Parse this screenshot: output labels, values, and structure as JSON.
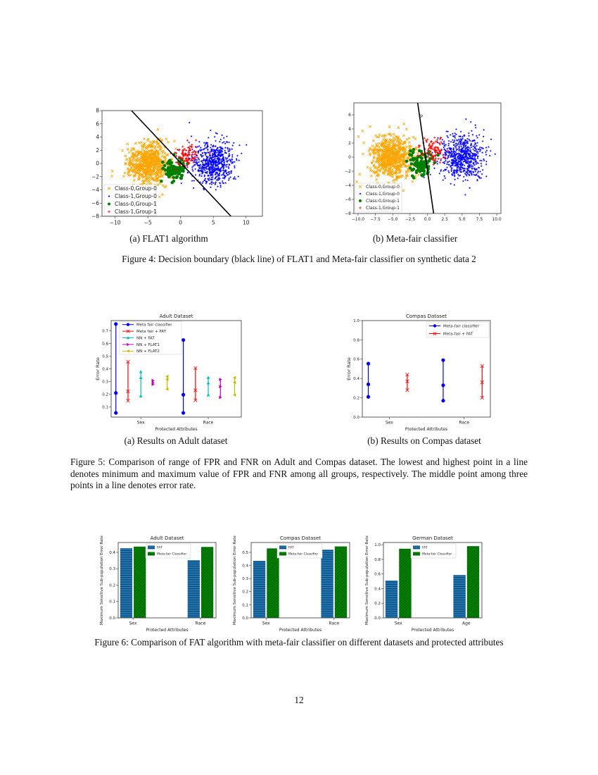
{
  "page_number": "12",
  "figure4": {
    "caption": "Figure 4: Decision boundary (black line) of FLAT1 and Meta-fair classifier on synthetic data 2",
    "subcaptions": [
      "(a) FLAT1 algorithm",
      "(b) Meta-fair classifier"
    ]
  },
  "figure5": {
    "caption": "Figure 5: Comparison of range of FPR and FNR on Adult and Compas dataset. The lowest and highest point in a line denotes minimum and maximum value of FPR and FNR among all groups, respectively. The middle point among three points in a line denotes error rate.",
    "subcaptions": [
      "(a) Results on Adult dataset",
      "(b) Results on Compas dataset"
    ]
  },
  "figure6": {
    "caption": "Figure 6: Comparison of FAT algorithm with meta-fair classifier on different datasets and protected attributes"
  },
  "chart_data": [
    {
      "type": "scatter",
      "title": "",
      "xlabel": "",
      "ylabel": "",
      "xlim": [
        -12,
        12.5
      ],
      "ylim": [
        -8,
        8
      ],
      "x_ticks": [
        -10,
        -5,
        0,
        5,
        10
      ],
      "x_tick_labels": [
        "−10",
        "−5",
        "0",
        "5",
        "10"
      ],
      "y_ticks": [
        -8,
        -6,
        -4,
        -2,
        0,
        2,
        4,
        6,
        8
      ],
      "y_tick_labels": [
        "−8",
        "−6",
        "−4",
        "−2",
        "0",
        "2",
        "4",
        "6",
        "8"
      ],
      "legend_position": "lower-left",
      "decision_boundary": [
        [
          -7.5,
          8
        ],
        [
          7.7,
          -8
        ]
      ],
      "boundary_color": "#000000",
      "series": [
        {
          "name": "Class-0,Group-0",
          "marker": "x",
          "color": "#ffa500",
          "center": [
            -5,
            0
          ],
          "std": 1.6
        },
        {
          "name": "Class-1,Group-0",
          "marker": "*",
          "color": "#0000ff",
          "center": [
            5,
            0
          ],
          "std": 1.6
        },
        {
          "name": "Class-0,Group-1",
          "marker": "o",
          "color": "#008000",
          "center": [
            -1,
            -1
          ],
          "std": 0.9
        },
        {
          "name": "Class-1,Group-1",
          "marker": "+",
          "color": "#ff0000",
          "center": [
            1,
            1
          ],
          "std": 0.9
        }
      ]
    },
    {
      "type": "scatter",
      "title": "",
      "xlabel": "",
      "ylabel": "",
      "xlim": [
        -10.6,
        10.6
      ],
      "ylim": [
        -8,
        7.7
      ],
      "x_ticks": [
        -10,
        -7.5,
        -5,
        -2.5,
        0,
        2.5,
        5,
        7.5,
        10
      ],
      "x_tick_labels": [
        "−10.0",
        "−7.5",
        "−5.0",
        "−2.5",
        "0.0",
        "2.5",
        "5.0",
        "7.5",
        "10.0"
      ],
      "y_ticks": [
        -8,
        -6,
        -4,
        -2,
        0,
        2,
        4,
        6
      ],
      "y_tick_labels": [
        "−8",
        "−6",
        "−4",
        "−2",
        "0",
        "2",
        "4",
        "6"
      ],
      "legend_position": "lower-left",
      "decision_boundary": [
        [
          -1.4,
          7.7
        ],
        [
          0.9,
          -8
        ]
      ],
      "boundary_label": "0",
      "boundary_color": "#000000",
      "series": [
        {
          "name": "Class-0,Group-0",
          "marker": "x",
          "color": "#ffa500",
          "center": [
            -5,
            0
          ],
          "std": 1.6
        },
        {
          "name": "Class-1,Group-0",
          "marker": "*",
          "color": "#0000ff",
          "center": [
            5,
            0
          ],
          "std": 1.6
        },
        {
          "name": "Class-0,Group-1",
          "marker": "o",
          "color": "#008000",
          "center": [
            -1,
            -1
          ],
          "std": 0.9
        },
        {
          "name": "Class-1,Group-1",
          "marker": "+",
          "color": "#ff0000",
          "center": [
            0.8,
            1
          ],
          "std": 0.9
        }
      ]
    },
    {
      "type": "errorbar",
      "title": "Adult Dataset",
      "xlabel": "Protected Attributes",
      "ylabel": "Error Rate",
      "categories": [
        "Sex",
        "Race"
      ],
      "ylim": [
        0.02,
        0.78
      ],
      "y_ticks": [
        0.1,
        0.2,
        0.3,
        0.4,
        0.5,
        0.6,
        0.7
      ],
      "y_tick_labels": [
        "0.1",
        "0.2",
        "0.3",
        "0.4",
        "0.5",
        "0.6",
        "0.7"
      ],
      "legend_position": "upper-left",
      "value_order": [
        "min",
        "error rate",
        "max"
      ],
      "series": [
        {
          "name": "Meta fair classifier",
          "marker": "o",
          "color": "#0000ff",
          "values": [
            [
              0.053,
              0.21,
              0.753
            ],
            [
              0.053,
              0.196,
              0.627
            ]
          ]
        },
        {
          "name": "Meta fair + FAT",
          "marker": "x",
          "color": "#ff0000",
          "values": [
            [
              0.149,
              0.222,
              0.456
            ],
            [
              0.153,
              0.231,
              0.406
            ]
          ]
        },
        {
          "name": "NN + FAT",
          "marker": "^",
          "color": "#00bfbf",
          "values": [
            [
              0.186,
              0.331,
              0.378
            ],
            [
              0.194,
              0.288,
              0.331
            ]
          ]
        },
        {
          "name": "NN + FLAT1",
          "marker": ">",
          "color": "#bf00bf",
          "values": [
            [
              0.278,
              0.29,
              0.308
            ],
            [
              0.175,
              0.26,
              0.316
            ]
          ]
        },
        {
          "name": "NN + FLAT2",
          "marker": "<",
          "color": "#bfbf00",
          "values": [
            [
              0.24,
              0.316,
              0.34
            ],
            [
              0.194,
              0.293,
              0.331
            ]
          ]
        }
      ]
    },
    {
      "type": "errorbar",
      "title": "Compas Dataset",
      "xlabel": "Protected Attributes",
      "ylabel": "Error Rate",
      "categories": [
        "Sex",
        "Race"
      ],
      "ylim": [
        0,
        1
      ],
      "y_ticks": [
        0,
        0.2,
        0.4,
        0.6,
        0.8,
        1.0
      ],
      "y_tick_labels": [
        "0.0",
        "0.2",
        "0.4",
        "0.6",
        "0.8",
        "1.0"
      ],
      "legend_position": "upper-right",
      "value_order": [
        "min",
        "error rate",
        "max"
      ],
      "series": [
        {
          "name": "Meta-fair classifier",
          "marker": "o",
          "color": "#0000ff",
          "values": [
            [
              0.21,
              0.34,
              0.554
            ],
            [
              0.17,
              0.33,
              0.59
            ]
          ]
        },
        {
          "name": "Meta-fair + FAT",
          "marker": "x",
          "color": "#ff0000",
          "values": [
            [
              0.28,
              0.37,
              0.44
            ],
            [
              0.2,
              0.36,
              0.53
            ]
          ]
        }
      ]
    },
    {
      "type": "bar",
      "title": "Adult Dataset",
      "xlabel": "Protected Attributes",
      "ylabel": "Maximum Sensitive Sub-population Error Rate",
      "categories": [
        "Sex",
        "Race"
      ],
      "ylim": [
        0,
        0.46
      ],
      "y_ticks": [
        0,
        0.1,
        0.2,
        0.3,
        0.4
      ],
      "y_tick_labels": [
        "0.0",
        "0.1",
        "0.2",
        "0.3",
        "0.4"
      ],
      "legend_position": "upper-center",
      "series": [
        {
          "name": "FAT",
          "color": "#1f77b4",
          "hatch": "horizontal",
          "values": [
            0.425,
            0.352
          ]
        },
        {
          "name": "Meta-fair Classifier",
          "color": "#008000",
          "hatch": "diagonal",
          "values": [
            0.435,
            0.433
          ]
        }
      ]
    },
    {
      "type": "bar",
      "title": "Compas Dataset",
      "xlabel": "Protected Attributes",
      "ylabel": "Maximum Sensitive Sub-population Error Rate",
      "categories": [
        "Sex",
        "Race"
      ],
      "ylim": [
        0,
        0.575
      ],
      "y_ticks": [
        0,
        0.1,
        0.2,
        0.3,
        0.4,
        0.5
      ],
      "y_tick_labels": [
        "0.0",
        "0.1",
        "0.2",
        "0.3",
        "0.4",
        "0.5"
      ],
      "legend_position": "upper-center",
      "series": [
        {
          "name": "FAT",
          "color": "#1f77b4",
          "hatch": "horizontal",
          "values": [
            0.435,
            0.52
          ]
        },
        {
          "name": "Meta-fair Classifier",
          "color": "#008000",
          "hatch": "diagonal",
          "values": [
            0.53,
            0.545
          ]
        }
      ]
    },
    {
      "type": "bar",
      "title": "German Dataset",
      "xlabel": "Protected Attributes",
      "ylabel": "Maximum Sensitive Sub-population Error Rate",
      "categories": [
        "Sex",
        "Age"
      ],
      "ylim": [
        0,
        1.03
      ],
      "y_ticks": [
        0,
        0.2,
        0.4,
        0.6,
        0.8,
        1.0
      ],
      "y_tick_labels": [
        "0.0",
        "0.2",
        "0.4",
        "0.6",
        "0.8",
        "1.0"
      ],
      "legend_position": "upper-center",
      "series": [
        {
          "name": "FAT",
          "color": "#1f77b4",
          "hatch": "horizontal",
          "values": [
            0.51,
            0.585
          ]
        },
        {
          "name": "Meta-fair Classifier",
          "color": "#008000",
          "hatch": "diagonal",
          "values": [
            0.945,
            0.98
          ]
        }
      ]
    }
  ]
}
